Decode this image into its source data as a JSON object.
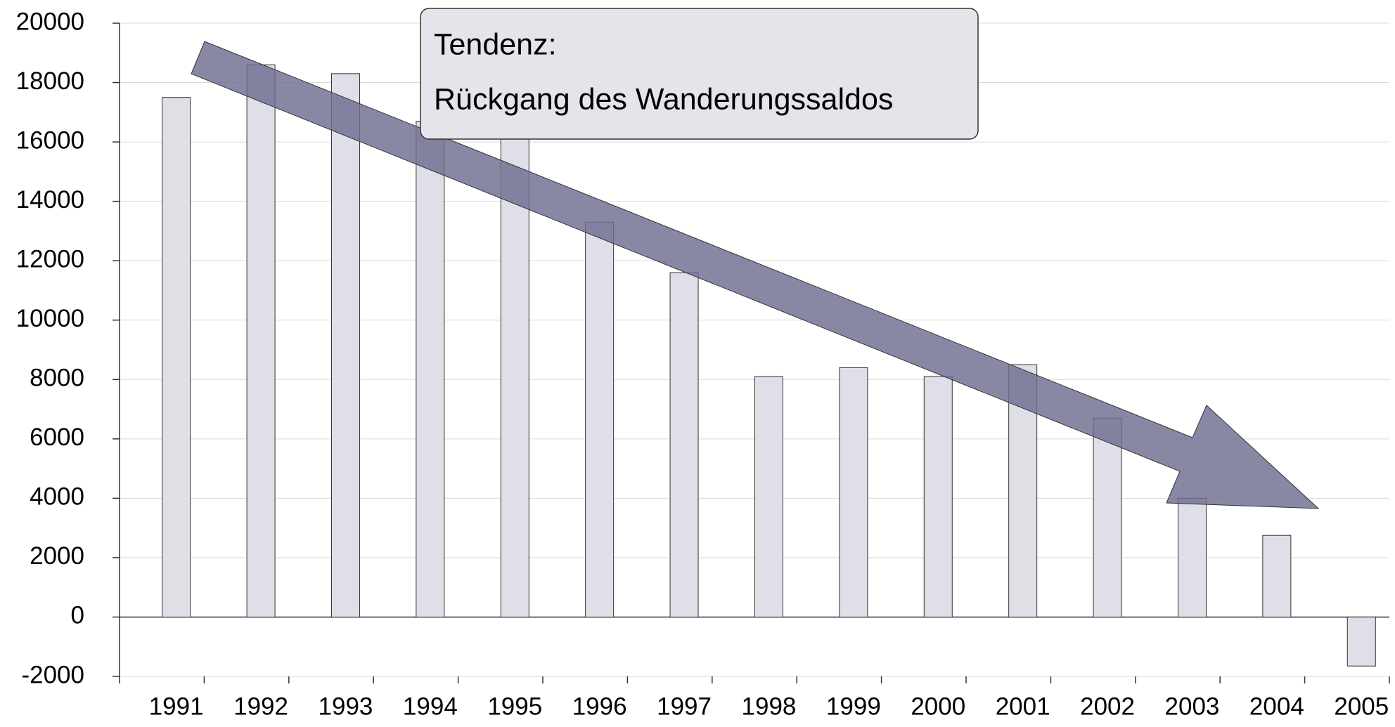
{
  "chart_data": {
    "type": "bar",
    "categories": [
      "1991",
      "1992",
      "1993",
      "1994",
      "1995",
      "1996",
      "1997",
      "1998",
      "1999",
      "2000",
      "2001",
      "2002",
      "2003",
      "2004",
      "2005"
    ],
    "values": [
      17500,
      18600,
      18300,
      16700,
      16800,
      13300,
      11600,
      8100,
      8400,
      8100,
      8500,
      6700,
      4000,
      2750,
      -1650
    ],
    "color": "#dfdfe7",
    "ylim": [
      -2000,
      20000
    ],
    "yticks": [
      -2000,
      0,
      2000,
      4000,
      6000,
      8000,
      10000,
      12000,
      14000,
      16000,
      18000,
      20000
    ],
    "grid": true,
    "annotation": [
      "Tendenz:",
      "Rückgang des Wanderungssaldos"
    ]
  }
}
